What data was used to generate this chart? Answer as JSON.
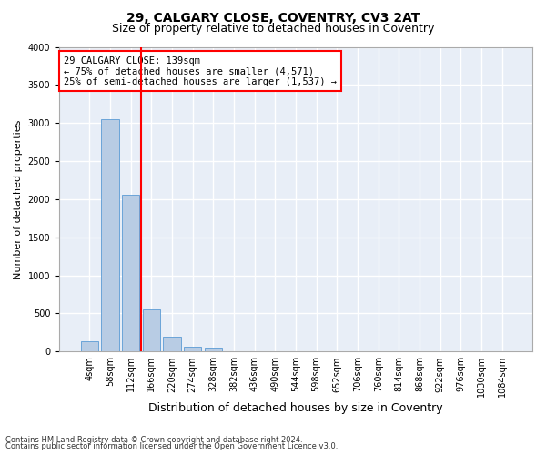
{
  "title1": "29, CALGARY CLOSE, COVENTRY, CV3 2AT",
  "title2": "Size of property relative to detached houses in Coventry",
  "xlabel": "Distribution of detached houses by size in Coventry",
  "ylabel": "Number of detached properties",
  "categories": [
    "4sqm",
    "58sqm",
    "112sqm",
    "166sqm",
    "220sqm",
    "274sqm",
    "328sqm",
    "382sqm",
    "436sqm",
    "490sqm",
    "544sqm",
    "598sqm",
    "652sqm",
    "706sqm",
    "760sqm",
    "814sqm",
    "868sqm",
    "922sqm",
    "976sqm",
    "1030sqm",
    "1084sqm"
  ],
  "values": [
    130,
    3050,
    2060,
    550,
    200,
    65,
    50,
    0,
    0,
    0,
    0,
    0,
    0,
    0,
    0,
    0,
    0,
    0,
    0,
    0,
    0
  ],
  "bar_color": "#b8cce4",
  "bar_edgecolor": "#5b9bd5",
  "vline_color": "red",
  "vline_pos": 2.5,
  "annotation_text": "29 CALGARY CLOSE: 139sqm\n← 75% of detached houses are smaller (4,571)\n25% of semi-detached houses are larger (1,537) →",
  "annotation_box_color": "white",
  "annotation_box_edgecolor": "red",
  "ylim": [
    0,
    4000
  ],
  "yticks": [
    0,
    500,
    1000,
    1500,
    2000,
    2500,
    3000,
    3500,
    4000
  ],
  "footer1": "Contains HM Land Registry data © Crown copyright and database right 2024.",
  "footer2": "Contains public sector information licensed under the Open Government Licence v3.0.",
  "bg_color": "#e8eef7",
  "grid_color": "white",
  "title1_fontsize": 10,
  "title2_fontsize": 9,
  "xlabel_fontsize": 9,
  "ylabel_fontsize": 8,
  "annot_fontsize": 7.5,
  "tick_fontsize": 7,
  "footer_fontsize": 6
}
